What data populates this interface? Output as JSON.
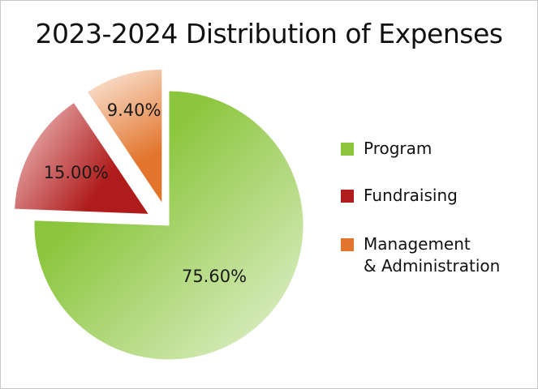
{
  "chart_data": {
    "type": "pie",
    "title": "2023-2024 Distribution of Expenses",
    "slices": [
      {
        "label": "Program",
        "value": 75.6,
        "display": "75.60%",
        "color": "#8cc63e",
        "light": "#d2e9b4",
        "exploded": false
      },
      {
        "label": "Fundraising",
        "value": 15.0,
        "display": "15.00%",
        "color": "#b01c1c",
        "light": "#e6a9a9",
        "exploded": true
      },
      {
        "label": "Management\n& Administration",
        "value": 9.4,
        "display": "9.40%",
        "color": "#e2742b",
        "light": "#f8dcc8",
        "exploded": true
      }
    ],
    "legend_position": "right"
  }
}
